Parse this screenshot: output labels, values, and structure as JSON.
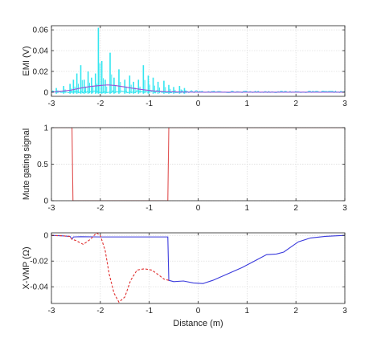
{
  "chart_data": [
    {
      "type": "line",
      "ylabel": "EMI (V)",
      "xlabel": "",
      "xlim": [
        -3,
        3
      ],
      "ylim": [
        -0.004,
        0.064
      ],
      "xticks": [
        -3,
        -2,
        -1,
        0,
        1,
        2,
        3
      ],
      "yticks": [
        0,
        0.02,
        0.04,
        0.06
      ],
      "ytick_labels": [
        "0",
        "0.02",
        "0.04",
        "0.06"
      ],
      "grid": true,
      "series": [
        {
          "color": "#33e6f0",
          "style": "spikes",
          "baseline_noise": 0.0015,
          "spikes": [
            {
              "x": -2.9,
              "y": 0.004
            },
            {
              "x": -2.75,
              "y": 0.006
            },
            {
              "x": -2.62,
              "y": 0.008
            },
            {
              "x": -2.55,
              "y": 0.012
            },
            {
              "x": -2.48,
              "y": 0.018
            },
            {
              "x": -2.4,
              "y": 0.026
            },
            {
              "x": -2.33,
              "y": 0.012
            },
            {
              "x": -2.25,
              "y": 0.02
            },
            {
              "x": -2.18,
              "y": 0.014
            },
            {
              "x": -2.1,
              "y": 0.018
            },
            {
              "x": -2.04,
              "y": 0.062
            },
            {
              "x": -1.97,
              "y": 0.03
            },
            {
              "x": -1.9,
              "y": 0.012
            },
            {
              "x": -1.8,
              "y": 0.038
            },
            {
              "x": -1.72,
              "y": 0.014
            },
            {
              "x": -1.62,
              "y": 0.022
            },
            {
              "x": -1.5,
              "y": 0.012
            },
            {
              "x": -1.4,
              "y": 0.016
            },
            {
              "x": -1.32,
              "y": 0.01
            },
            {
              "x": -1.22,
              "y": 0.012
            },
            {
              "x": -1.12,
              "y": 0.026
            },
            {
              "x": -1.02,
              "y": 0.016
            },
            {
              "x": -0.92,
              "y": 0.014
            },
            {
              "x": -0.82,
              "y": 0.01
            },
            {
              "x": -0.7,
              "y": 0.011
            },
            {
              "x": -0.6,
              "y": 0.007
            },
            {
              "x": -0.5,
              "y": 0.005
            },
            {
              "x": -0.38,
              "y": 0.006
            },
            {
              "x": -0.28,
              "y": 0.004
            }
          ]
        },
        {
          "color": "#9b4fd6",
          "style": "smooth",
          "points": [
            [
              -3,
              0.0
            ],
            [
              -2.8,
              0.001
            ],
            [
              -2.6,
              0.002
            ],
            [
              -2.4,
              0.004
            ],
            [
              -2.2,
              0.0055
            ],
            [
              -2.0,
              0.0065
            ],
            [
              -1.85,
              0.007
            ],
            [
              -1.7,
              0.0065
            ],
            [
              -1.5,
              0.005
            ],
            [
              -1.3,
              0.0035
            ],
            [
              -1.1,
              0.0022
            ],
            [
              -0.9,
              0.0012
            ],
            [
              -0.7,
              0.0006
            ],
            [
              -0.4,
              0.0002
            ],
            [
              0,
              0.0
            ],
            [
              3,
              0.0
            ]
          ]
        }
      ]
    },
    {
      "type": "line",
      "ylabel": "Mute gating signal",
      "xlabel": "",
      "xlim": [
        -3,
        3
      ],
      "ylim": [
        0,
        1
      ],
      "xticks": [
        -3,
        -2,
        -1,
        0,
        1,
        2,
        3
      ],
      "yticks": [
        0,
        0.5,
        1
      ],
      "ytick_labels": [
        "0",
        "0.5",
        "1"
      ],
      "grid": true,
      "series": [
        {
          "color": "#e05050",
          "style": "line",
          "points": [
            [
              -3,
              1
            ],
            [
              -2.58,
              1
            ],
            [
              -2.56,
              0
            ],
            [
              -0.62,
              0
            ],
            [
              -0.6,
              1
            ],
            [
              3,
              1
            ]
          ]
        }
      ]
    },
    {
      "type": "line",
      "ylabel": "X-VMP (Ω)",
      "xlabel": "Distance  (m)",
      "xlim": [
        -3,
        3
      ],
      "ylim": [
        -0.053,
        0.002
      ],
      "xticks": [
        -3,
        -2,
        -1,
        0,
        1,
        2,
        3
      ],
      "yticks": [
        0,
        -0.02,
        -0.04
      ],
      "ytick_labels": [
        "0",
        "-0.02",
        "-0.04"
      ],
      "grid": true,
      "series": [
        {
          "color": "#3a3adc",
          "style": "line",
          "points": [
            [
              -3,
              0.0
            ],
            [
              -2.8,
              -0.0003
            ],
            [
              -2.62,
              -0.0008
            ],
            [
              -2.58,
              -0.003
            ],
            [
              -2.55,
              -0.0012
            ],
            [
              -2.4,
              -0.001
            ],
            [
              -2.0,
              -0.0012
            ],
            [
              -1.5,
              -0.0012
            ],
            [
              -1.0,
              -0.0012
            ],
            [
              -0.62,
              -0.0012
            ],
            [
              -0.6,
              -0.035
            ],
            [
              -0.5,
              -0.036
            ],
            [
              -0.3,
              -0.0355
            ],
            [
              -0.1,
              -0.037
            ],
            [
              0.1,
              -0.0375
            ],
            [
              0.3,
              -0.035
            ],
            [
              0.6,
              -0.03
            ],
            [
              0.9,
              -0.025
            ],
            [
              1.2,
              -0.019
            ],
            [
              1.4,
              -0.015
            ],
            [
              1.6,
              -0.0145
            ],
            [
              1.75,
              -0.013
            ],
            [
              1.9,
              -0.009
            ],
            [
              2.05,
              -0.005
            ],
            [
              2.3,
              -0.002
            ],
            [
              2.6,
              -0.0008
            ],
            [
              3,
              0.0
            ]
          ]
        },
        {
          "color": "#e03030",
          "style": "dashed",
          "points": [
            [
              -3,
              0.0
            ],
            [
              -2.8,
              -0.0003
            ],
            [
              -2.62,
              -0.0008
            ],
            [
              -2.58,
              -0.003
            ],
            [
              -2.5,
              -0.004
            ],
            [
              -2.35,
              -0.007
            ],
            [
              -2.2,
              -0.003
            ],
            [
              -2.08,
              0.002
            ],
            [
              -2.0,
              0.0
            ],
            [
              -1.9,
              -0.012
            ],
            [
              -1.82,
              -0.03
            ],
            [
              -1.72,
              -0.045
            ],
            [
              -1.62,
              -0.052
            ],
            [
              -1.5,
              -0.048
            ],
            [
              -1.38,
              -0.035
            ],
            [
              -1.25,
              -0.027
            ],
            [
              -1.1,
              -0.026
            ],
            [
              -0.95,
              -0.027
            ],
            [
              -0.8,
              -0.031
            ],
            [
              -0.7,
              -0.034
            ],
            [
              -0.6,
              -0.035
            ]
          ]
        }
      ]
    }
  ]
}
